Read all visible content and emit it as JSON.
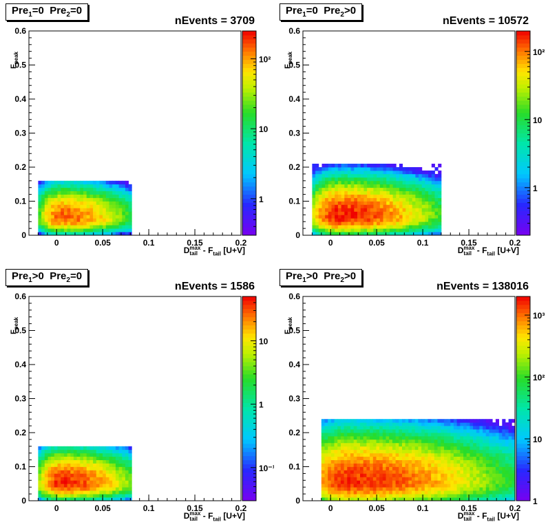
{
  "panels": [
    {
      "tag_a": "Pre",
      "tag_a_sub": "1",
      "tag_a_rel": "=0",
      "tag_b": "Pre",
      "tag_b_sub": "2",
      "tag_b_rel": "=0",
      "nevents": "nEvents = 3709"
    },
    {
      "tag_a": "Pre",
      "tag_a_sub": "1",
      "tag_a_rel": "=0",
      "tag_b": "Pre",
      "tag_b_sub": "2",
      "tag_b_rel": ">0",
      "nevents": "nEvents = 10572"
    },
    {
      "tag_a": "Pre",
      "tag_a_sub": "1",
      "tag_a_rel": ">0",
      "tag_b": "Pre",
      "tag_b_sub": "2",
      "tag_b_rel": "=0",
      "nevents": "nEvents = 1586"
    },
    {
      "tag_a": "Pre",
      "tag_a_sub": "1",
      "tag_a_rel": ">0",
      "tag_b": "Pre",
      "tag_b_sub": "2",
      "tag_b_rel": ">0",
      "nevents": "nEvents = 138016"
    }
  ],
  "axis": {
    "ylabel_main": "F",
    "ylabel_sub": "peak",
    "xlabel_main": "D",
    "xlabel_sup": "max",
    "xlabel_sub": "tail",
    "xlabel_mid": " - F",
    "xlabel_sub2": "tail",
    "xlabel_tail": " [U+V]"
  },
  "chart_data": [
    {
      "type": "heatmap",
      "xlim": [
        -0.03,
        0.2
      ],
      "ylim": [
        0,
        0.6
      ],
      "xticks": [
        "0",
        "0.05",
        "0.1",
        "0.15",
        "0.2"
      ],
      "yticks": [
        "0",
        "0.1",
        "0.2",
        "0.3",
        "0.4",
        "0.5",
        "0.6"
      ],
      "zscale": "log",
      "zlim": [
        0.3,
        250
      ],
      "zticks": [
        "1",
        "10",
        "10²"
      ],
      "peak": [
        0.003,
        0.045
      ],
      "zpeak": 150,
      "xspread": 0.022,
      "yspread": 0.03,
      "extent_x": [
        -0.02,
        0.08
      ],
      "extent_y": [
        0,
        0.16
      ]
    },
    {
      "type": "heatmap",
      "xlim": [
        -0.03,
        0.2
      ],
      "ylim": [
        0,
        0.6
      ],
      "xticks": [
        "0",
        "0.05",
        "0.1",
        "0.15",
        "0.2"
      ],
      "yticks": [
        "0",
        "0.1",
        "0.2",
        "0.3",
        "0.4",
        "0.5",
        "0.6"
      ],
      "zscale": "log",
      "zlim": [
        0.2,
        200
      ],
      "zticks": [
        "1",
        "10",
        "10²"
      ],
      "peak": [
        0.008,
        0.05
      ],
      "zpeak": 180,
      "xspread": 0.03,
      "yspread": 0.035,
      "extent_x": [
        -0.02,
        0.12
      ],
      "extent_y": [
        0,
        0.21
      ]
    },
    {
      "type": "heatmap",
      "xlim": [
        -0.03,
        0.2
      ],
      "ylim": [
        0,
        0.6
      ],
      "xticks": [
        "0",
        "0.05",
        "0.1",
        "0.15",
        "0.2"
      ],
      "yticks": [
        "0",
        "0.1",
        "0.2",
        "0.3",
        "0.4",
        "0.5",
        "0.6"
      ],
      "zscale": "log",
      "zlim": [
        0.03,
        50
      ],
      "zticks": [
        "10⁻¹",
        "1",
        "10"
      ],
      "peak": [
        0.003,
        0.045
      ],
      "zpeak": 40,
      "xspread": 0.022,
      "yspread": 0.03,
      "extent_x": [
        -0.02,
        0.08
      ],
      "extent_y": [
        0,
        0.16
      ]
    },
    {
      "type": "heatmap",
      "xlim": [
        -0.03,
        0.2
      ],
      "ylim": [
        0,
        0.6
      ],
      "xticks": [
        "0",
        "0.05",
        "0.1",
        "0.15",
        "0.2"
      ],
      "yticks": [
        "0",
        "0.1",
        "0.2",
        "0.3",
        "0.4",
        "0.5",
        "0.6"
      ],
      "zscale": "log",
      "zlim": [
        1,
        2000
      ],
      "zticks": [
        "1",
        "10",
        "10²",
        "10³"
      ],
      "peak": [
        0.02,
        0.05
      ],
      "zpeak": 1500,
      "xspread": 0.045,
      "yspread": 0.045,
      "extent_x": [
        -0.01,
        0.2
      ],
      "extent_y": [
        0,
        0.24
      ]
    }
  ]
}
